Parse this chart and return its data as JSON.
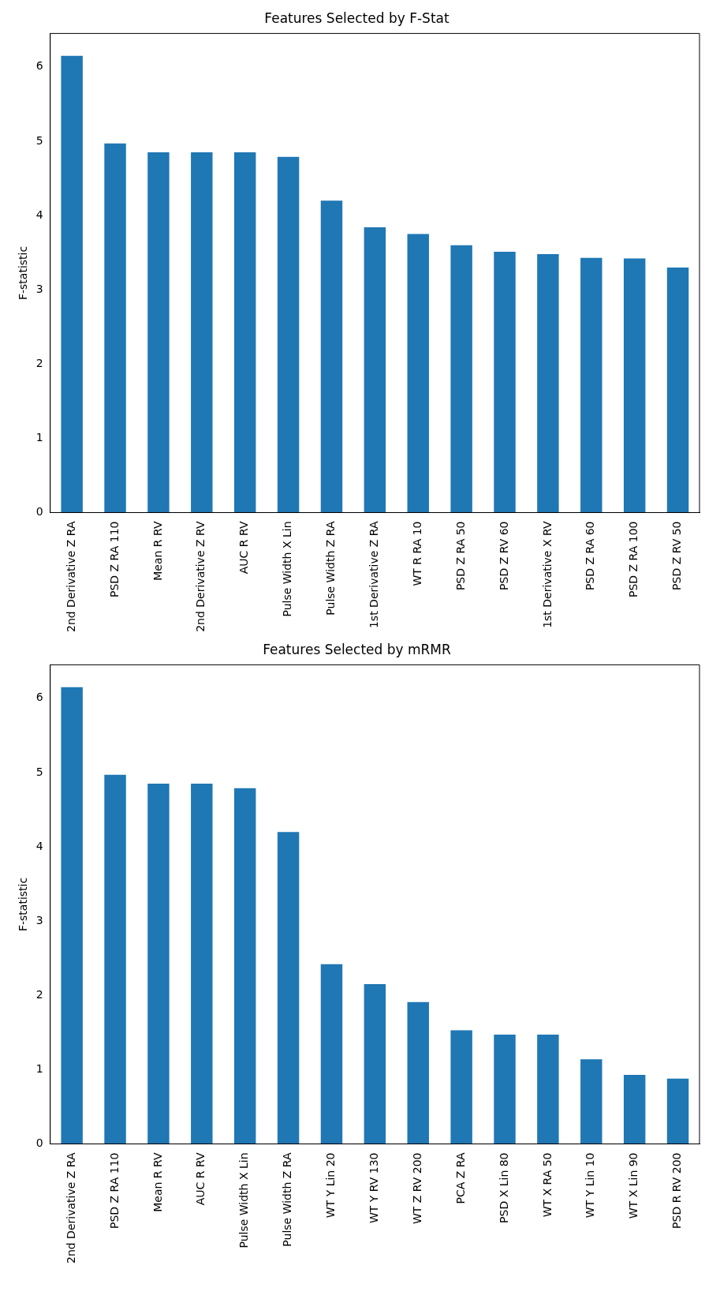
{
  "chart_data": [
    {
      "type": "bar",
      "title": "Features Selected by F-Stat",
      "ylabel": "F-statistic",
      "categories": [
        "2nd Derivative Z RA",
        "PSD Z RA 110",
        "Mean R RV",
        "2nd Derivative Z RV",
        "AUC R RV",
        "Pulse Width X Lin",
        "Pulse Width Z RA",
        "1st Derivative Z RA",
        "WT R RA 10",
        "PSD Z RA 50",
        "PSD Z RV 60",
        "1st Derivative X RV",
        "PSD Z RA 60",
        "PSD Z RA 100",
        "PSD Z RV 50"
      ],
      "values": [
        6.15,
        4.97,
        4.85,
        4.85,
        4.85,
        4.79,
        4.2,
        3.84,
        3.75,
        3.6,
        3.51,
        3.48,
        3.43,
        3.42,
        3.3
      ],
      "color": "#1f77b4",
      "ylim": [
        0,
        6.45
      ],
      "yticks": [
        0,
        1,
        2,
        3,
        4,
        5,
        6
      ],
      "grid": false,
      "legend": false
    },
    {
      "type": "bar",
      "title": "Features Selected by mRMR",
      "ylabel": "F-statistic",
      "categories": [
        "2nd Derivative Z RA",
        "PSD Z RA 110",
        "Mean R RV",
        "AUC R RV",
        "Pulse Width X Lin",
        "Pulse Width Z RA",
        "WT Y Lin 20",
        "WT Y RV 130",
        "WT Z RV 200",
        "PCA Z RA",
        "PSD X Lin 80",
        "WT X RA 50",
        "WT Y Lin 10",
        "WT X Lin 90",
        "PSD R RV 200"
      ],
      "values": [
        6.15,
        4.97,
        4.85,
        4.85,
        4.79,
        4.2,
        2.42,
        2.15,
        1.91,
        1.53,
        1.47,
        1.47,
        1.14,
        0.93,
        0.88
      ],
      "color": "#1f77b4",
      "ylim": [
        0,
        6.45
      ],
      "yticks": [
        0,
        1,
        2,
        3,
        4,
        5,
        6
      ],
      "grid": false,
      "legend": false
    }
  ]
}
